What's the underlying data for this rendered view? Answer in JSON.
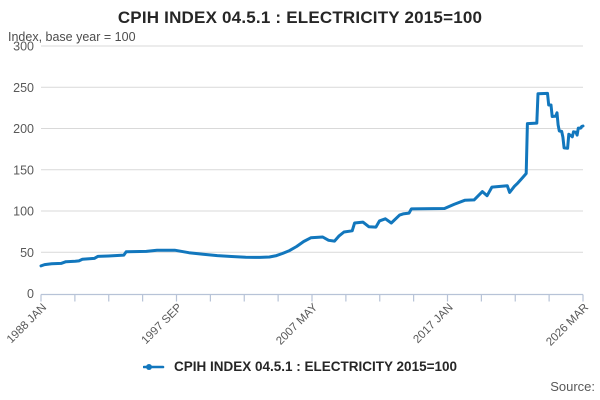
{
  "header": {
    "title": "CPIH INDEX 04.5.1 : ELECTRICITY 2015=100",
    "subtitle": "Index, base year = 100"
  },
  "legend": {
    "label": "CPIH INDEX 04.5.1 : ELECTRICITY 2015=100"
  },
  "footer": {
    "source_label": "Source:"
  },
  "colors": {
    "line": "#1277bd",
    "grid": "#d9d9d9",
    "axis": "#b7c3d7",
    "title_text": "#262626",
    "label_text": "#595959"
  },
  "chart_data": {
    "type": "line",
    "title": "CPIH INDEX 04.5.1 : ELECTRICITY 2015=100",
    "ylabel": "Index, base year = 100",
    "xlabel": "",
    "ylim": [
      0,
      300
    ],
    "y_ticks": [
      0,
      50,
      100,
      150,
      200,
      250,
      300
    ],
    "x_range": [
      "1988-01",
      "2026-03"
    ],
    "x_tick_labels": [
      "1988 JAN",
      "1997 SEP",
      "2007 MAY",
      "2017 JAN",
      "2026 MAR"
    ],
    "x_minor_ticks_between_majors": 3,
    "grid": "horizontal",
    "legend_position": "bottom",
    "series": [
      {
        "name": "CPIH INDEX 04.5.1 : ELECTRICITY 2015=100",
        "color": "#1277bd",
        "points": [
          [
            "1988-01",
            33.5
          ],
          [
            "1988-04",
            35
          ],
          [
            "1988-10",
            36
          ],
          [
            "1989-06",
            36.5
          ],
          [
            "1989-10",
            38.5
          ],
          [
            "1990-06",
            39
          ],
          [
            "1990-09",
            39.5
          ],
          [
            "1990-12",
            41.5
          ],
          [
            "1991-10",
            42.5
          ],
          [
            "1992-01",
            45
          ],
          [
            "1992-10",
            45.5
          ],
          [
            "1993-11",
            46.5
          ],
          [
            "1994-01",
            50.5
          ],
          [
            "1995-06",
            51
          ],
          [
            "1996-03",
            52.5
          ],
          [
            "1997-06",
            52.5
          ],
          [
            "1998-06",
            49.5
          ],
          [
            "1999-06",
            47.5
          ],
          [
            "2000-06",
            46
          ],
          [
            "2001-06",
            44.8
          ],
          [
            "2002-06",
            44
          ],
          [
            "2003-06",
            43.8
          ],
          [
            "2004-02",
            44.3
          ],
          [
            "2004-08",
            46
          ],
          [
            "2005-01",
            48.5
          ],
          [
            "2005-07",
            52
          ],
          [
            "2006-01",
            57
          ],
          [
            "2006-07",
            63
          ],
          [
            "2007-01",
            67.5
          ],
          [
            "2007-11",
            68.5
          ],
          [
            "2008-04",
            64.5
          ],
          [
            "2008-09",
            63.5
          ],
          [
            "2009-01",
            70
          ],
          [
            "2009-05",
            74.5
          ],
          [
            "2009-12",
            76
          ],
          [
            "2010-02",
            85.5
          ],
          [
            "2010-09",
            86.5
          ],
          [
            "2011-02",
            81
          ],
          [
            "2011-08",
            80.5
          ],
          [
            "2011-11",
            88
          ],
          [
            "2012-04",
            90.5
          ],
          [
            "2012-09",
            85.5
          ],
          [
            "2013-04",
            95
          ],
          [
            "2013-07",
            96.5
          ],
          [
            "2013-12",
            97.5
          ],
          [
            "2014-02",
            102.5
          ],
          [
            "2016-06",
            103
          ],
          [
            "2017-02",
            108
          ],
          [
            "2017-11",
            113
          ],
          [
            "2018-07",
            113.5
          ],
          [
            "2019-02",
            123.5
          ],
          [
            "2019-06",
            118.5
          ],
          [
            "2019-10",
            129
          ],
          [
            "2020-11",
            130.5
          ],
          [
            "2021-01",
            122.5
          ],
          [
            "2021-05",
            130
          ],
          [
            "2021-08",
            134
          ],
          [
            "2021-12",
            140.5
          ],
          [
            "2022-03",
            145.5
          ],
          [
            "2022-04",
            206
          ],
          [
            "2022-12",
            206.5
          ],
          [
            "2023-01",
            242
          ],
          [
            "2023-09",
            242.5
          ],
          [
            "2023-10",
            228.5
          ],
          [
            "2023-12",
            228.5
          ],
          [
            "2024-01",
            214.5
          ],
          [
            "2024-04",
            215
          ],
          [
            "2024-05",
            219
          ],
          [
            "2024-06",
            204.5
          ],
          [
            "2024-07",
            197
          ],
          [
            "2024-09",
            196.5
          ],
          [
            "2024-10",
            189.5
          ],
          [
            "2024-11",
            176.5
          ],
          [
            "2025-02",
            176
          ],
          [
            "2025-03",
            193
          ],
          [
            "2025-05",
            191
          ],
          [
            "2025-06",
            190
          ],
          [
            "2025-07",
            196
          ],
          [
            "2025-09",
            195.5
          ],
          [
            "2025-10",
            192
          ],
          [
            "2025-11",
            200.5
          ],
          [
            "2026-01",
            200.5
          ],
          [
            "2026-02",
            202.5
          ],
          [
            "2026-03",
            203
          ]
        ]
      }
    ]
  }
}
